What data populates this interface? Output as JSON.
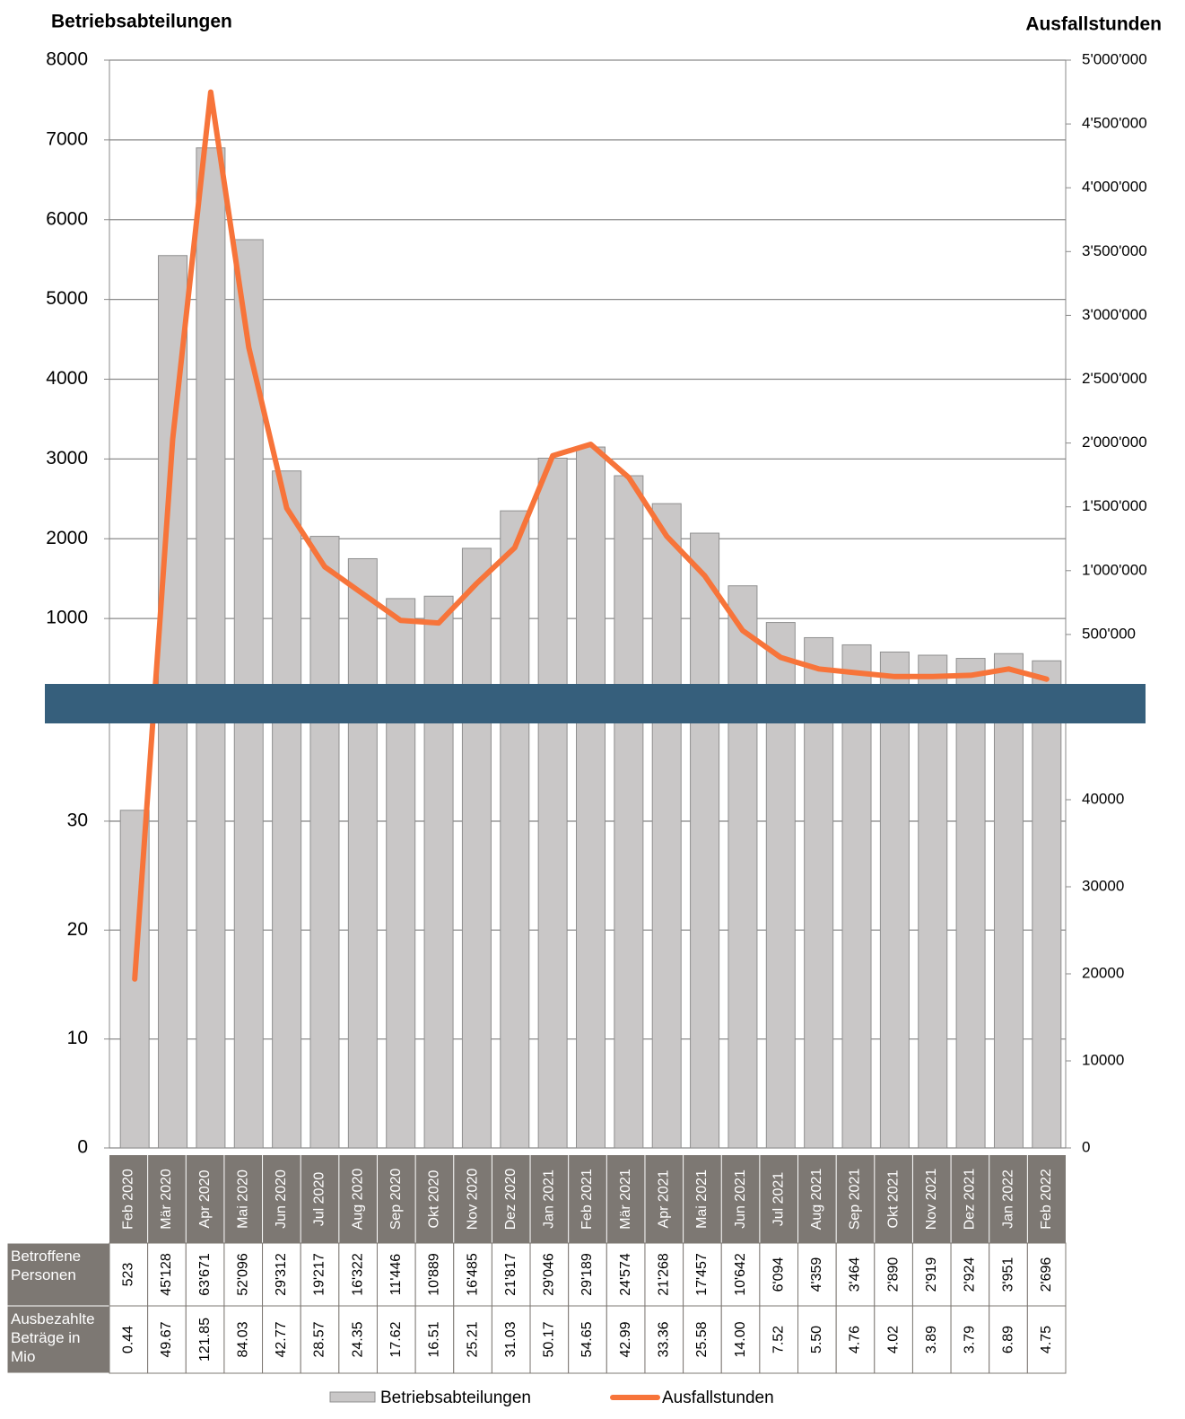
{
  "chart_data": {
    "type": "bar_line",
    "y_title": "Betriebsabteilungen",
    "y2_title": "Ausfallstunden",
    "categories": [
      "Feb 2020",
      "Mär 2020",
      "Apr 2020",
      "Mai 2020",
      "Jun 2020",
      "Jul 2020",
      "Aug 2020",
      "Sep 2020",
      "Okt 2020",
      "Nov 2020",
      "Dez 2020",
      "Jan 2021",
      "Feb 2021",
      "Mär 2021",
      "Apr 2021",
      "Mai 2021",
      "Jun 2021",
      "Jul 2021",
      "Aug 2021",
      "Sep 2021",
      "Okt 2021",
      "Nov 2021",
      "Dez 2021",
      "Jan 2022",
      "Feb 2022"
    ],
    "series": [
      {
        "name": "Betriebsabteilungen",
        "color": "#c9c7c7",
        "values": [
          31,
          5550,
          6900,
          5750,
          2850,
          2030,
          1750,
          1250,
          1280,
          1880,
          2350,
          3010,
          3150,
          2790,
          2440,
          2070,
          1410,
          950,
          760,
          670,
          580,
          540,
          500,
          560,
          470
        ]
      },
      {
        "name": "Ausfallstunden",
        "color": "#f7743a",
        "axis": "y2",
        "values": [
          19400,
          2030000,
          4750000,
          2750000,
          1490000,
          1030000,
          820000,
          610000,
          590000,
          900000,
          1180000,
          1900000,
          1990000,
          1730000,
          1270000,
          960000,
          530000,
          320000,
          230000,
          200000,
          170000,
          170000,
          180000,
          230000,
          150000
        ]
      }
    ],
    "grid": true,
    "panels": [
      {
        "ylim": [
          0,
          8000
        ],
        "yticks": [
          1000,
          2000,
          3000,
          4000,
          5000,
          6000,
          7000,
          8000
        ],
        "y2lim": [
          0,
          5000000
        ],
        "y2ticks": [
          {
            "value": 500000,
            "label": "500'000"
          },
          {
            "value": 1000000,
            "label": "1'000'000"
          },
          {
            "value": 1500000,
            "label": "1'500'000"
          },
          {
            "value": 2000000,
            "label": "2'000'000"
          },
          {
            "value": 2500000,
            "label": "2'500'000"
          },
          {
            "value": 3000000,
            "label": "3'000'000"
          },
          {
            "value": 3500000,
            "label": "3'500'000"
          },
          {
            "value": 4000000,
            "label": "4'000'000"
          },
          {
            "value": 4500000,
            "label": "4'500'000"
          },
          {
            "value": 5000000,
            "label": "5'000'000"
          }
        ]
      },
      {
        "ylim": [
          0,
          42.6
        ],
        "yticks": [
          0,
          10,
          20,
          30
        ],
        "y2lim": [
          0,
          53300
        ],
        "y2ticks": [
          0,
          10000,
          20000,
          30000,
          40000
        ]
      }
    ],
    "table": {
      "rows": [
        {
          "label": "Betroffene Personen",
          "values": [
            "523",
            "45'128",
            "63'671",
            "52'096",
            "29'312",
            "19'217",
            "16'322",
            "11'446",
            "10'889",
            "16'485",
            "21'817",
            "29'046",
            "29'189",
            "24'574",
            "21'268",
            "17'457",
            "10'642",
            "6'094",
            "4'359",
            "3'464",
            "2'890",
            "2'919",
            "2'924",
            "3'951",
            "2'696"
          ]
        },
        {
          "label": "Ausbezahlte Beträge in Mio",
          "values": [
            "0.44",
            "49.67",
            "121.85",
            "84.03",
            "42.77",
            "28.57",
            "24.35",
            "17.62",
            "16.51",
            "25.21",
            "31.03",
            "50.17",
            "54.65",
            "42.99",
            "33.36",
            "25.58",
            "14.00",
            "7.52",
            "5.50",
            "4.76",
            "4.02",
            "3.89",
            "3.79",
            "6.89",
            "4.75"
          ]
        }
      ]
    }
  }
}
